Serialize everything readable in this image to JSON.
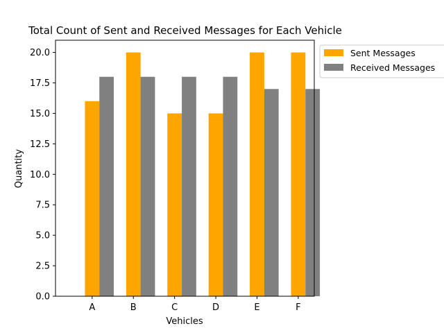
{
  "chart_data": {
    "type": "bar",
    "title": "Total Count of Sent and Received Messages for Each Vehicle",
    "xlabel": "Vehicles",
    "ylabel": "Quantity",
    "categories": [
      "A",
      "B",
      "C",
      "D",
      "E",
      "F"
    ],
    "series": [
      {
        "name": "Sent Messages",
        "values": [
          16,
          20,
          15,
          15,
          20,
          20
        ],
        "color": "#ffa500"
      },
      {
        "name": "Received Messages",
        "values": [
          18,
          18,
          18,
          18,
          17,
          17
        ],
        "color": "#808080"
      }
    ],
    "ylim": [
      0,
      21
    ],
    "yticks": [
      "0.0",
      "2.5",
      "5.0",
      "7.5",
      "10.0",
      "12.5",
      "15.0",
      "17.5",
      "20.0"
    ],
    "grid": false,
    "legend_position": "outside-top-right"
  }
}
